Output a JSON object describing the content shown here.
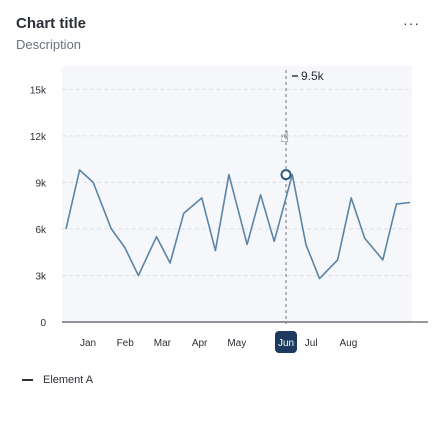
{
  "header": {
    "title": "Chart title",
    "description": "Description",
    "more_icon": "more-horizontal-icon"
  },
  "tooltip": {
    "value_label": "9.5k"
  },
  "chart_data": {
    "type": "line",
    "title": "Chart title",
    "subtitle": "Description",
    "y_ticks": [
      "0",
      "3k",
      "6k",
      "9k",
      "12k",
      "15k"
    ],
    "y_tick_values": [
      0,
      3000,
      6000,
      9000,
      12000,
      15000
    ],
    "ylim": [
      0,
      16500
    ],
    "months": [
      "Jan",
      "Feb",
      "Mar",
      "Apr",
      "May",
      "Jun",
      "Jul",
      "Aug"
    ],
    "highlighted_month": "Jun",
    "grid": true,
    "legend_position": "bottom-left",
    "series": [
      {
        "name": "Element A",
        "color": "#5b84a5",
        "x": [
          0,
          0.3,
          0.6,
          1,
          1.3,
          1.6,
          2,
          2.3,
          2.6,
          3,
          3.3,
          3.6,
          4,
          4.3,
          4.6,
          5,
          5.3,
          5.6,
          6,
          6.3,
          6.6,
          7,
          7.3,
          7.6
        ],
        "values": [
          6000,
          9800,
          9000,
          6000,
          4800,
          3000,
          5500,
          3800,
          7000,
          8000,
          4600,
          9500,
          5000,
          8200,
          5200,
          9500,
          5000,
          2800,
          4000,
          8000,
          5400,
          4000,
          7600,
          7700
        ]
      }
    ]
  }
}
